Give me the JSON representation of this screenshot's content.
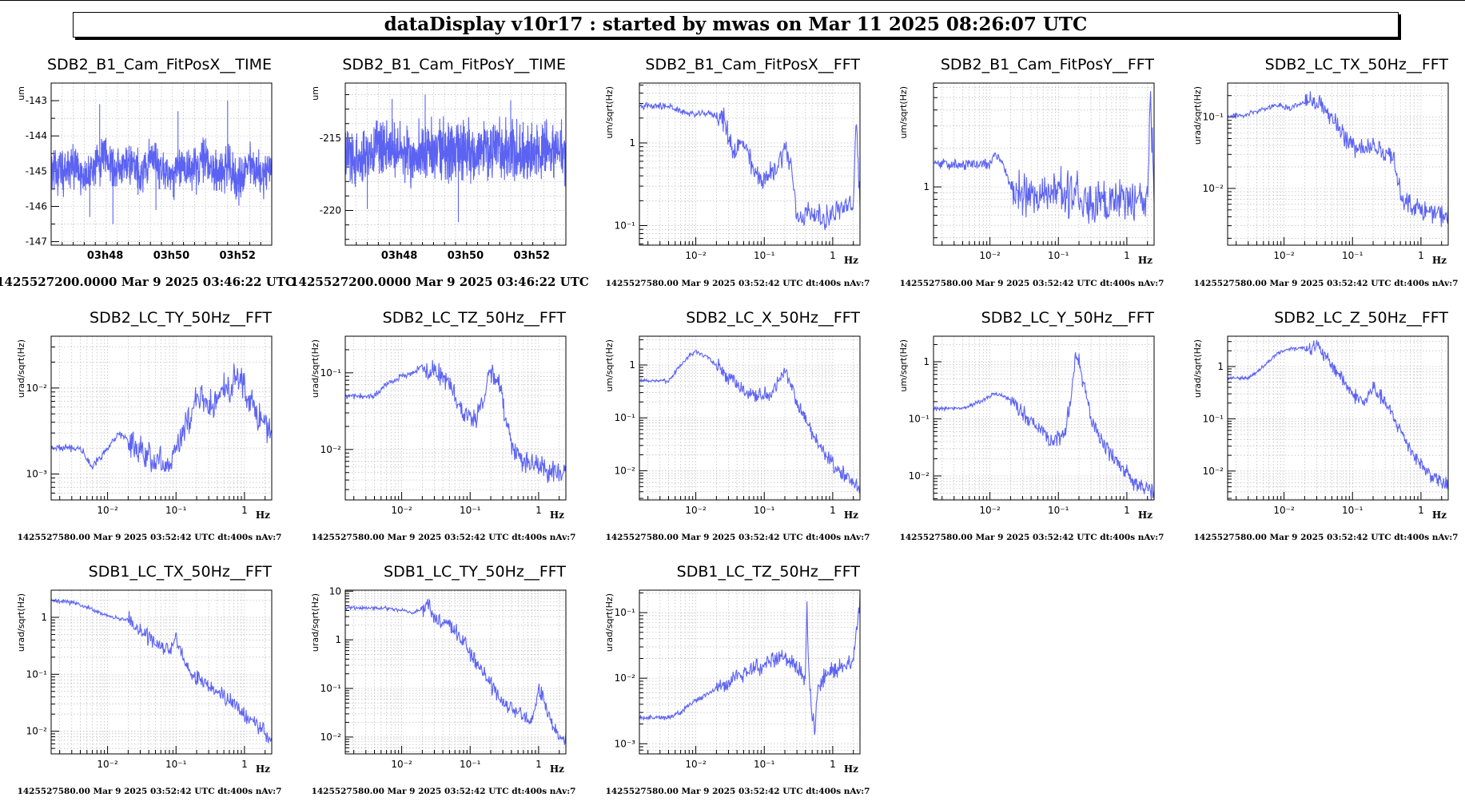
{
  "header": {
    "title": "dataDisplay v10r17 : started by mwas on Mar 11 2025 08:26:07 UTC"
  },
  "colors": {
    "trace": "#5c63f2",
    "grid": "#b8b8b8",
    "frame": "#000000"
  },
  "chart_data": [
    {
      "type": "line",
      "title": "SDB2_B1_Cam_FitPosX__TIME",
      "ylabel": "um",
      "xscale": "time",
      "yscale": "linear",
      "ylim": [
        -147.1,
        -142.5
      ],
      "yticks": [
        "-143",
        "-144",
        "-145",
        "-146",
        "-147"
      ],
      "ytickvals": [
        -143,
        -144,
        -145,
        -146,
        -147
      ],
      "xlim": [
        0,
        400
      ],
      "xticks": [
        "03h48",
        "03h50",
        "03h52"
      ],
      "xtickvals": [
        98,
        218,
        338
      ],
      "footer": "1425527200.0000 Mar 9 2025 03:46:22 UTC",
      "series": [
        {
          "x": [
            0,
            20,
            40,
            60,
            80,
            100,
            120,
            140,
            160,
            180,
            200,
            220,
            240,
            260,
            280,
            300,
            320,
            340,
            360,
            380,
            400
          ],
          "y": [
            -144.9,
            -145.1,
            -144.8,
            -145.2,
            -144.9,
            -144.5,
            -145.0,
            -144.7,
            -145.1,
            -144.6,
            -144.9,
            -145.2,
            -144.8,
            -145.0,
            -144.6,
            -145.1,
            -144.9,
            -145.3,
            -144.8,
            -145.1,
            -144.9
          ],
          "noise": 0.6,
          "spikes": [
            [
              88,
              -143.1
            ],
            [
              112,
              -146.5
            ],
            [
              320,
              -143.0
            ],
            [
              70,
              -146.3
            ],
            [
              230,
              -143.3
            ],
            [
              190,
              -146.1
            ]
          ]
        }
      ]
    },
    {
      "type": "line",
      "title": "SDB2_B1_Cam_FitPosY__TIME",
      "ylabel": "um",
      "xscale": "time",
      "yscale": "linear",
      "ylim": [
        -222.4,
        -211.2
      ],
      "yticks": [
        "-215",
        "-220"
      ],
      "ytickvals": [
        -215,
        -220
      ],
      "xlim": [
        0,
        400
      ],
      "xticks": [
        "03h48",
        "03h50",
        "03h52"
      ],
      "xtickvals": [
        98,
        218,
        338
      ],
      "footer": "1425527200.0000 Mar 9 2025 03:46:22 UTC",
      "series": [
        {
          "x": [
            0,
            40,
            80,
            120,
            160,
            200,
            240,
            280,
            320,
            360,
            400
          ],
          "y": [
            -216.0,
            -215.8,
            -215.9,
            -216.1,
            -215.7,
            -215.9,
            -216.0,
            -215.8,
            -216.1,
            -215.9,
            -216.0
          ],
          "noise": 2.0,
          "spikes": [
            [
              85,
              -212.3
            ],
            [
              205,
              -220.8
            ],
            [
              145,
              -212.0
            ],
            [
              40,
              -219.9
            ],
            [
              300,
              -212.4
            ]
          ]
        }
      ]
    },
    {
      "type": "line",
      "title": "SDB2_B1_Cam_FitPosX__FFT",
      "ylabel": "um/sqrt(Hz)",
      "xscale": "log",
      "yscale": "log",
      "xlim": [
        0.0015,
        2.5
      ],
      "ylim": [
        0.058,
        5.3
      ],
      "xticks": [
        "10⁻²",
        "10⁻¹",
        "1"
      ],
      "xtickvals": [
        0.01,
        0.1,
        1
      ],
      "yticks": [
        "1",
        "10⁻¹"
      ],
      "ytickvals": [
        1,
        0.1
      ],
      "xunit": "Hz",
      "footer": "1425527580.00 Mar 9 2025 03:52:42 UTC dt:400s nAv:7",
      "series": [
        {
          "x": [
            0.0015,
            0.0025,
            0.004,
            0.006,
            0.01,
            0.015,
            0.025,
            0.035,
            0.05,
            0.07,
            0.1,
            0.15,
            0.2,
            0.25,
            0.3,
            0.45,
            0.7,
            1.0,
            1.5,
            2.0,
            2.2,
            2.5
          ],
          "y": [
            2.8,
            2.8,
            2.8,
            2.4,
            2.2,
            2.3,
            2.0,
            0.8,
            1.0,
            0.45,
            0.35,
            0.5,
            0.9,
            0.5,
            0.12,
            0.15,
            0.12,
            0.14,
            0.17,
            0.16,
            2.2,
            0.18
          ],
          "noise": 0.12
        }
      ]
    },
    {
      "type": "line",
      "title": "SDB2_B1_Cam_FitPosY__FFT",
      "ylabel": "um/sqrt(Hz)",
      "xscale": "log",
      "yscale": "log",
      "xlim": [
        0.0015,
        2.5
      ],
      "ylim": [
        0.35,
        6.5
      ],
      "xticks": [
        "10⁻²",
        "10⁻¹",
        "1"
      ],
      "xtickvals": [
        0.01,
        0.1,
        1
      ],
      "yticks": [
        "1"
      ],
      "ytickvals": [
        1
      ],
      "xunit": "Hz",
      "footer": "1425527580.00 Mar 9 2025 03:52:42 UTC dt:400s nAv:7",
      "series": [
        {
          "x": [
            0.0015,
            0.007,
            0.01,
            0.012,
            0.015,
            0.02,
            0.03,
            0.05,
            0.1,
            0.2,
            0.3,
            0.5,
            0.8,
            1.0,
            1.5,
            2.0,
            2.2,
            2.5
          ],
          "y": [
            1.5,
            1.5,
            1.5,
            1.8,
            1.6,
            1.0,
            0.9,
            0.85,
            0.9,
            0.85,
            0.75,
            0.7,
            0.8,
            0.85,
            0.8,
            0.75,
            6.0,
            0.7
          ],
          "noise": 0.15
        }
      ]
    },
    {
      "type": "line",
      "title": "SDB2_LC_TX_50Hz__FFT",
      "ylabel": "urad/sqrt(Hz)",
      "xscale": "log",
      "yscale": "log",
      "xlim": [
        0.0015,
        2.5
      ],
      "ylim": [
        0.0016,
        0.3
      ],
      "xticks": [
        "10⁻²",
        "10⁻¹",
        "1"
      ],
      "xtickvals": [
        0.01,
        0.1,
        1
      ],
      "yticks": [
        "10⁻¹",
        "10⁻²"
      ],
      "ytickvals": [
        0.1,
        0.01
      ],
      "xunit": "Hz",
      "footer": "1425527580.00 Mar 9 2025 03:52:42 UTC dt:400s nAv:7",
      "series": [
        {
          "x": [
            0.0015,
            0.003,
            0.005,
            0.008,
            0.012,
            0.02,
            0.025,
            0.03,
            0.04,
            0.06,
            0.08,
            0.1,
            0.15,
            0.2,
            0.3,
            0.4,
            0.5,
            0.7,
            1.0,
            1.5,
            2.5
          ],
          "y": [
            0.1,
            0.11,
            0.13,
            0.15,
            0.13,
            0.16,
            0.2,
            0.16,
            0.13,
            0.08,
            0.05,
            0.04,
            0.035,
            0.04,
            0.03,
            0.03,
            0.008,
            0.006,
            0.005,
            0.0045,
            0.004
          ],
          "noise": 0.12
        }
      ]
    },
    {
      "type": "line",
      "title": "SDB2_LC_TY_50Hz__FFT",
      "ylabel": "urad/sqrt(Hz)",
      "xscale": "log",
      "yscale": "log",
      "xlim": [
        0.0015,
        2.5
      ],
      "ylim": [
        0.0005,
        0.04
      ],
      "xticks": [
        "10⁻²",
        "10⁻¹",
        "1"
      ],
      "xtickvals": [
        0.01,
        0.1,
        1
      ],
      "yticks": [
        "10⁻²",
        "10⁻³"
      ],
      "ytickvals": [
        0.01,
        0.001
      ],
      "xunit": "Hz",
      "footer": "1425527580.00 Mar 9 2025 03:52:42 UTC dt:400s nAv:7",
      "series": [
        {
          "x": [
            0.0015,
            0.004,
            0.006,
            0.01,
            0.015,
            0.02,
            0.03,
            0.05,
            0.08,
            0.1,
            0.15,
            0.2,
            0.3,
            0.4,
            0.5,
            0.6,
            0.8,
            1.0,
            1.5,
            2.5
          ],
          "y": [
            0.002,
            0.002,
            0.0012,
            0.002,
            0.003,
            0.0025,
            0.002,
            0.0015,
            0.0012,
            0.002,
            0.004,
            0.008,
            0.006,
            0.007,
            0.01,
            0.009,
            0.016,
            0.01,
            0.005,
            0.003
          ],
          "noise": 0.15
        }
      ]
    },
    {
      "type": "line",
      "title": "SDB2_LC_TZ_50Hz__FFT",
      "ylabel": "urad/sqrt(Hz)",
      "xscale": "log",
      "yscale": "log",
      "xlim": [
        0.0015,
        2.5
      ],
      "ylim": [
        0.0022,
        0.3
      ],
      "xticks": [
        "10⁻²",
        "10⁻¹",
        "1"
      ],
      "xtickvals": [
        0.01,
        0.1,
        1
      ],
      "yticks": [
        "10⁻¹",
        "10⁻²"
      ],
      "ytickvals": [
        0.1,
        0.01
      ],
      "xunit": "Hz",
      "footer": "1425527580.00 Mar 9 2025 03:52:42 UTC dt:400s nAv:7",
      "series": [
        {
          "x": [
            0.0015,
            0.004,
            0.006,
            0.01,
            0.015,
            0.02,
            0.025,
            0.03,
            0.05,
            0.08,
            0.12,
            0.15,
            0.2,
            0.25,
            0.3,
            0.4,
            0.6,
            1.0,
            1.5,
            2.5
          ],
          "y": [
            0.05,
            0.05,
            0.07,
            0.09,
            0.1,
            0.13,
            0.09,
            0.12,
            0.07,
            0.03,
            0.025,
            0.04,
            0.1,
            0.09,
            0.04,
            0.012,
            0.007,
            0.006,
            0.005,
            0.005
          ],
          "noise": 0.12
        }
      ]
    },
    {
      "type": "line",
      "title": "SDB2_LC_X_50Hz__FFT",
      "ylabel": "um/sqrt(Hz)",
      "xscale": "log",
      "yscale": "log",
      "xlim": [
        0.0015,
        2.5
      ],
      "ylim": [
        0.0028,
        3.5
      ],
      "xticks": [
        "10⁻²",
        "10⁻¹",
        "1"
      ],
      "xtickvals": [
        0.01,
        0.1,
        1
      ],
      "yticks": [
        "1",
        "10⁻¹",
        "10⁻²"
      ],
      "ytickvals": [
        1,
        0.1,
        0.01
      ],
      "xunit": "Hz",
      "footer": "1425527580.00 Mar 9 2025 03:52:42 UTC dt:400s nAv:7",
      "series": [
        {
          "x": [
            0.0015,
            0.004,
            0.006,
            0.008,
            0.01,
            0.015,
            0.02,
            0.03,
            0.05,
            0.08,
            0.12,
            0.15,
            0.2,
            0.25,
            0.3,
            0.5,
            0.8,
            1.2,
            2.0,
            2.5
          ],
          "y": [
            0.5,
            0.5,
            1.0,
            1.5,
            1.8,
            1.4,
            1.0,
            0.6,
            0.35,
            0.25,
            0.28,
            0.4,
            0.8,
            0.4,
            0.2,
            0.05,
            0.02,
            0.01,
            0.006,
            0.005
          ],
          "noise": 0.12
        }
      ]
    },
    {
      "type": "line",
      "title": "SDB2_LC_Y_50Hz__FFT",
      "ylabel": "um/sqrt(Hz)",
      "xscale": "log",
      "yscale": "log",
      "xlim": [
        0.0015,
        2.5
      ],
      "ylim": [
        0.0038,
        2.8
      ],
      "xticks": [
        "10⁻²",
        "10⁻¹",
        "1"
      ],
      "xtickvals": [
        0.01,
        0.1,
        1
      ],
      "yticks": [
        "1",
        "10⁻¹",
        "10⁻²"
      ],
      "ytickvals": [
        1,
        0.1,
        0.01
      ],
      "xunit": "Hz",
      "footer": "1425527580.00 Mar 9 2025 03:52:42 UTC dt:400s nAv:7",
      "series": [
        {
          "x": [
            0.0015,
            0.004,
            0.007,
            0.012,
            0.02,
            0.03,
            0.05,
            0.08,
            0.12,
            0.15,
            0.18,
            0.22,
            0.3,
            0.5,
            0.8,
            1.2,
            2.0,
            2.5
          ],
          "y": [
            0.15,
            0.15,
            0.2,
            0.28,
            0.22,
            0.12,
            0.07,
            0.04,
            0.05,
            0.2,
            1.6,
            0.6,
            0.1,
            0.03,
            0.015,
            0.008,
            0.006,
            0.005
          ],
          "noise": 0.12
        }
      ]
    },
    {
      "type": "line",
      "title": "SDB2_LC_Z_50Hz__FFT",
      "ylabel": "urad/sqrt(Hz)",
      "xscale": "log",
      "yscale": "log",
      "xlim": [
        0.0015,
        2.5
      ],
      "ylim": [
        0.0028,
        3.8
      ],
      "xticks": [
        "10⁻²",
        "10⁻¹",
        "1"
      ],
      "xtickvals": [
        0.01,
        0.1,
        1
      ],
      "yticks": [
        "1",
        "10⁻¹",
        "10⁻²"
      ],
      "ytickvals": [
        1,
        0.1,
        0.01
      ],
      "xunit": "Hz",
      "footer": "1425527580.00 Mar 9 2025 03:52:42 UTC dt:400s nAv:7",
      "series": [
        {
          "x": [
            0.0015,
            0.003,
            0.005,
            0.008,
            0.012,
            0.02,
            0.03,
            0.04,
            0.06,
            0.1,
            0.15,
            0.2,
            0.3,
            0.5,
            0.8,
            1.2,
            2.0,
            2.5
          ],
          "y": [
            0.6,
            0.6,
            1.0,
            1.8,
            2.2,
            2.3,
            2.5,
            1.5,
            0.8,
            0.3,
            0.2,
            0.4,
            0.2,
            0.06,
            0.02,
            0.01,
            0.006,
            0.005
          ],
          "noise": 0.12
        }
      ]
    },
    {
      "type": "line",
      "title": "SDB1_LC_TX_50Hz__FFT",
      "ylabel": "urad/sqrt(Hz)",
      "xscale": "log",
      "yscale": "log",
      "xlim": [
        0.0015,
        2.5
      ],
      "ylim": [
        0.004,
        3.0
      ],
      "xticks": [
        "10⁻²",
        "10⁻¹",
        "1"
      ],
      "xtickvals": [
        0.01,
        0.1,
        1
      ],
      "yticks": [
        "1",
        "10⁻¹",
        "10⁻²"
      ],
      "ytickvals": [
        1,
        0.1,
        0.01
      ],
      "xunit": "Hz",
      "footer": "1425527580.00 Mar 9 2025 03:52:42 UTC dt:400s nAv:7",
      "series": [
        {
          "x": [
            0.0015,
            0.003,
            0.005,
            0.008,
            0.012,
            0.02,
            0.03,
            0.05,
            0.08,
            0.1,
            0.15,
            0.2,
            0.3,
            0.5,
            0.8,
            1.2,
            2.0,
            2.5
          ],
          "y": [
            2.0,
            1.8,
            1.5,
            1.2,
            1.0,
            0.9,
            0.6,
            0.35,
            0.25,
            0.4,
            0.12,
            0.08,
            0.06,
            0.04,
            0.025,
            0.015,
            0.01,
            0.007
          ],
          "noise": 0.12
        }
      ]
    },
    {
      "type": "line",
      "title": "SDB1_LC_TY_50Hz__FFT",
      "ylabel": "urad/sqrt(Hz)",
      "xscale": "log",
      "yscale": "log",
      "xlim": [
        0.0015,
        2.5
      ],
      "ylim": [
        0.0045,
        10.5
      ],
      "xticks": [
        "10⁻²",
        "10⁻¹",
        "1"
      ],
      "xtickvals": [
        0.01,
        0.1,
        1
      ],
      "yticks": [
        "10",
        "1",
        "10⁻¹",
        "10⁻²"
      ],
      "ytickvals": [
        10,
        1,
        0.1,
        0.01
      ],
      "xunit": "Hz",
      "footer": "1425527580.00 Mar 9 2025 03:52:42 UTC dt:400s nAv:7",
      "series": [
        {
          "x": [
            0.0015,
            0.003,
            0.006,
            0.01,
            0.015,
            0.02,
            0.025,
            0.03,
            0.05,
            0.08,
            0.1,
            0.15,
            0.2,
            0.3,
            0.5,
            0.8,
            1.0,
            1.5,
            2.0,
            2.5
          ],
          "y": [
            4.5,
            4.5,
            4.5,
            4.0,
            3.5,
            4.5,
            5.5,
            3.0,
            2.0,
            1.0,
            0.5,
            0.25,
            0.12,
            0.05,
            0.03,
            0.02,
            0.1,
            0.02,
            0.01,
            0.008
          ],
          "noise": 0.14
        }
      ]
    },
    {
      "type": "line",
      "title": "SDB1_LC_TZ_50Hz__FFT",
      "ylabel": "urad/sqrt(Hz)",
      "xscale": "log",
      "yscale": "log",
      "xlim": [
        0.0015,
        2.5
      ],
      "ylim": [
        0.0007,
        0.22
      ],
      "xticks": [
        "10⁻²",
        "10⁻¹",
        "1"
      ],
      "xtickvals": [
        0.01,
        0.1,
        1
      ],
      "yticks": [
        "10⁻¹",
        "10⁻²",
        "10⁻³"
      ],
      "ytickvals": [
        0.1,
        0.01,
        0.001
      ],
      "xunit": "Hz",
      "footer": "1425527580.00 Mar 9 2025 03:52:42 UTC dt:400s nAv:7",
      "series": [
        {
          "x": [
            0.0015,
            0.004,
            0.006,
            0.008,
            0.012,
            0.02,
            0.03,
            0.05,
            0.08,
            0.12,
            0.2,
            0.3,
            0.4,
            0.42,
            0.45,
            0.5,
            0.55,
            0.6,
            0.8,
            1.2,
            2.0,
            2.5
          ],
          "y": [
            0.0025,
            0.0025,
            0.003,
            0.004,
            0.005,
            0.007,
            0.009,
            0.012,
            0.015,
            0.018,
            0.02,
            0.015,
            0.01,
            0.15,
            0.01,
            0.003,
            0.0015,
            0.006,
            0.012,
            0.015,
            0.02,
            0.15
          ],
          "noise": 0.12
        }
      ]
    }
  ]
}
